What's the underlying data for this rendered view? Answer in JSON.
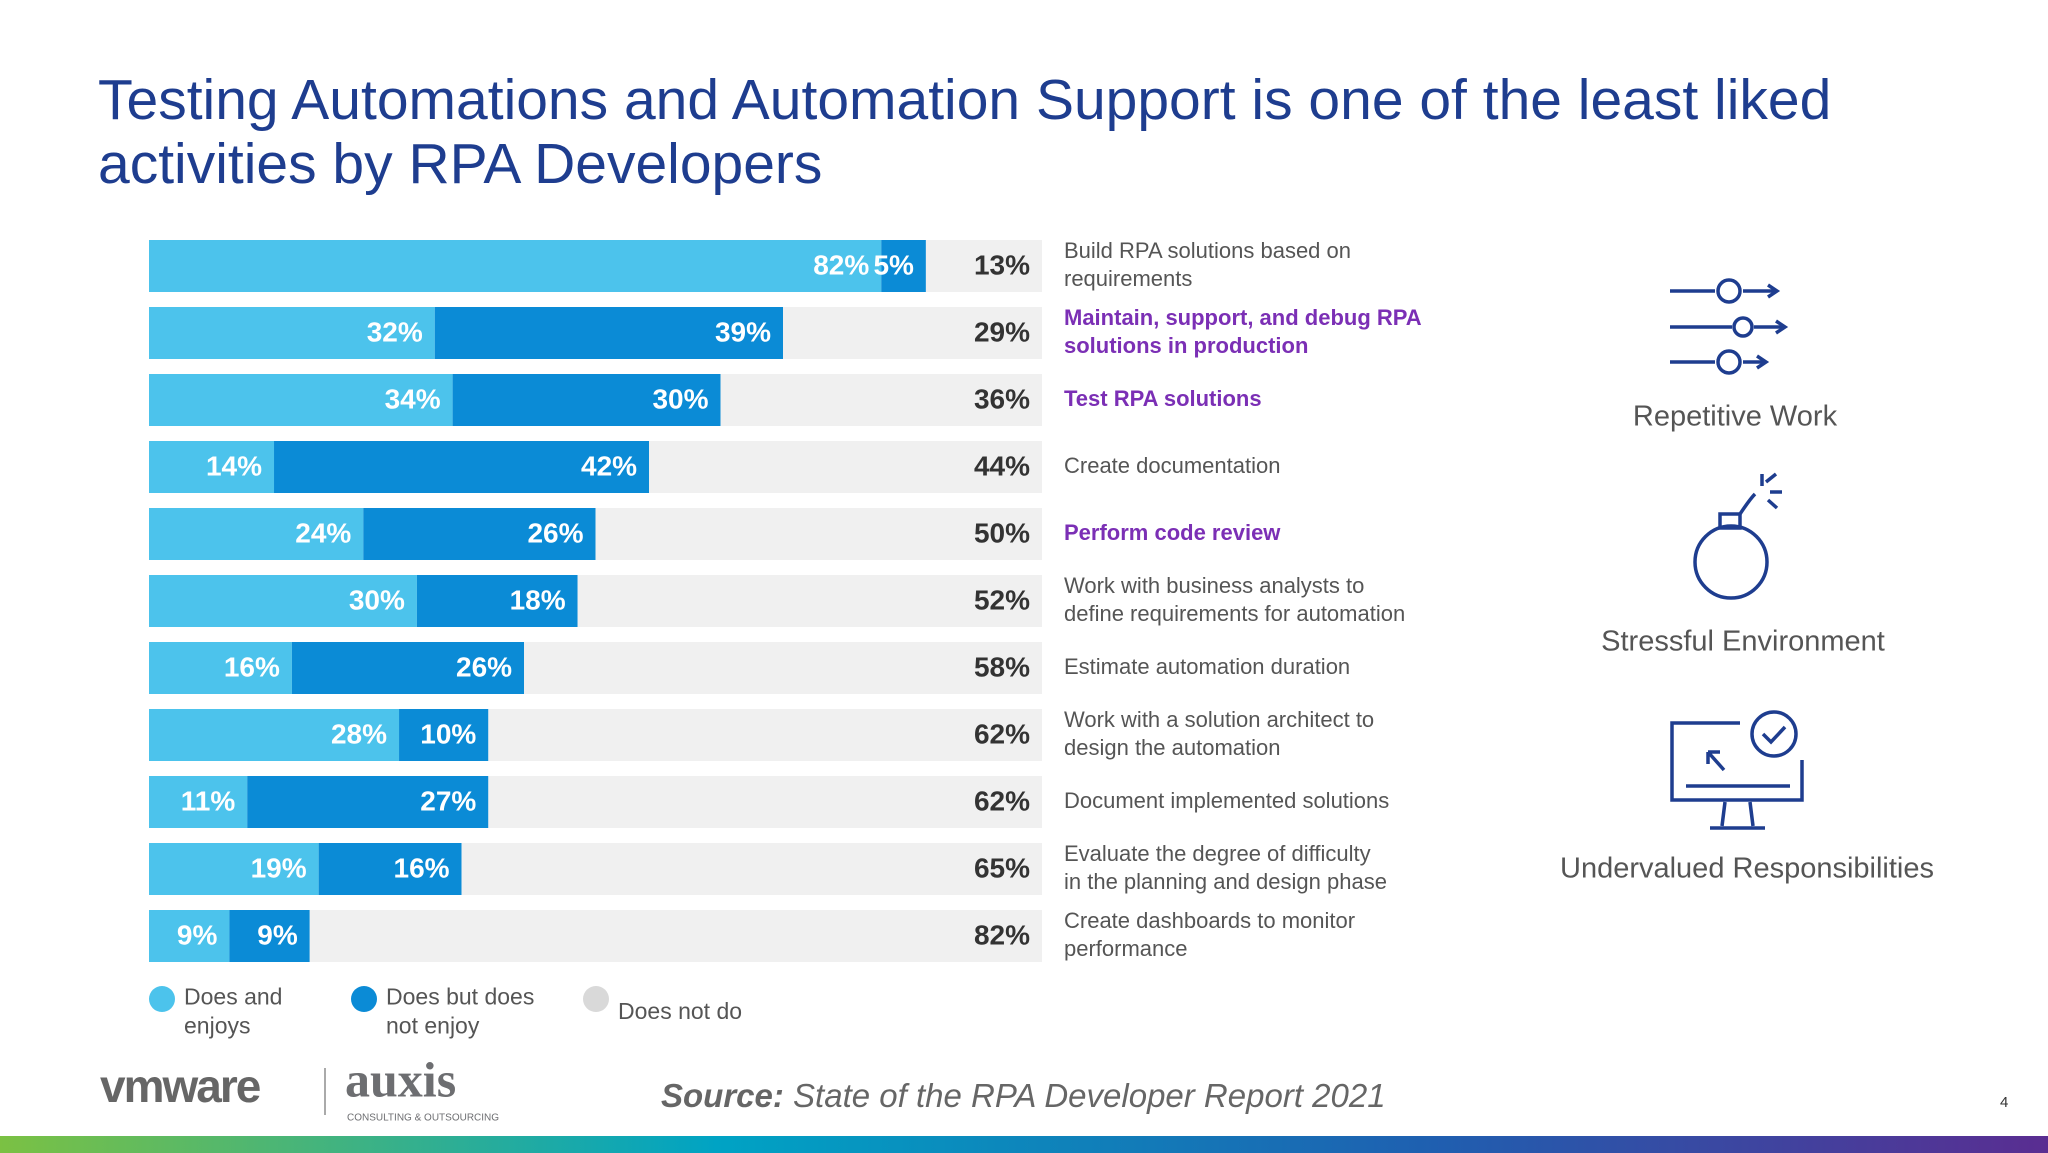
{
  "chart_data": {
    "type": "bar",
    "orientation": "horizontal",
    "stacked": true,
    "title": "Testing Automations and Automation Support is one of the least liked activities by RPA Developers",
    "categories": [
      "Build RPA solutions based on requirements",
      "Maintain, support, and debug RPA solutions in production",
      "Test RPA solutions",
      "Create documentation",
      "Perform code review",
      "Work with business analysts to define requirements for automation",
      "Estimate automation duration",
      "Work with a solution architect to design the automation",
      "Document implemented solutions",
      "Evaluate the degree of difficulty in the planning and design phase",
      "Create dashboards to monitor performance"
    ],
    "category_colors": [
      "#555555",
      "#7b2fb5",
      "#7b2fb5",
      "#555555",
      "#7b2fb5",
      "#555555",
      "#555555",
      "#555555",
      "#555555",
      "#555555",
      "#555555"
    ],
    "xlim": [
      0,
      100
    ],
    "series": [
      {
        "name": "Does and enjoys",
        "color": "#4cc3ec",
        "label_color": "#ffffff",
        "values": [
          82,
          32,
          34,
          14,
          24,
          30,
          16,
          28,
          11,
          19,
          9
        ],
        "value_labels": [
          "82%",
          "32%",
          "34%",
          "14%",
          "24%",
          "30%",
          "16%",
          "28%",
          "11%",
          "19%",
          "9%"
        ]
      },
      {
        "name": "Does but does not enjoy",
        "color": "#0b8bd6",
        "label_color": "#ffffff",
        "values": [
          5,
          39,
          30,
          42,
          26,
          18,
          26,
          10,
          27,
          16,
          9
        ],
        "value_labels": [
          "5%",
          "39%",
          "30%",
          "42%",
          "26%",
          "18%",
          "26%",
          "10%",
          "27%",
          "16%",
          "9%"
        ]
      },
      {
        "name": "Does not do",
        "color": "#f0f0f0",
        "label_color": "#333333",
        "values": [
          13,
          29,
          36,
          44,
          50,
          52,
          58,
          62,
          62,
          65,
          82
        ],
        "value_labels": [
          "13%",
          "29%",
          "36%",
          "44%",
          "50%",
          "52%",
          "58%",
          "62%",
          "62%",
          "65%",
          "82%"
        ]
      }
    ],
    "legend": "bottom-left"
  },
  "icons": [
    {
      "label": "Repetitive Work"
    },
    {
      "label": "Stressful Environment"
    },
    {
      "label": "Undervalued Responsibilities"
    }
  ],
  "source_label": "Source:",
  "source_text": "State of the RPA Developer Report 2021",
  "logos": {
    "vmware": "vmware",
    "auxis": "auxis",
    "auxis_tagline": "CONSULTING & OUTSOURCING"
  },
  "page_number": "4"
}
